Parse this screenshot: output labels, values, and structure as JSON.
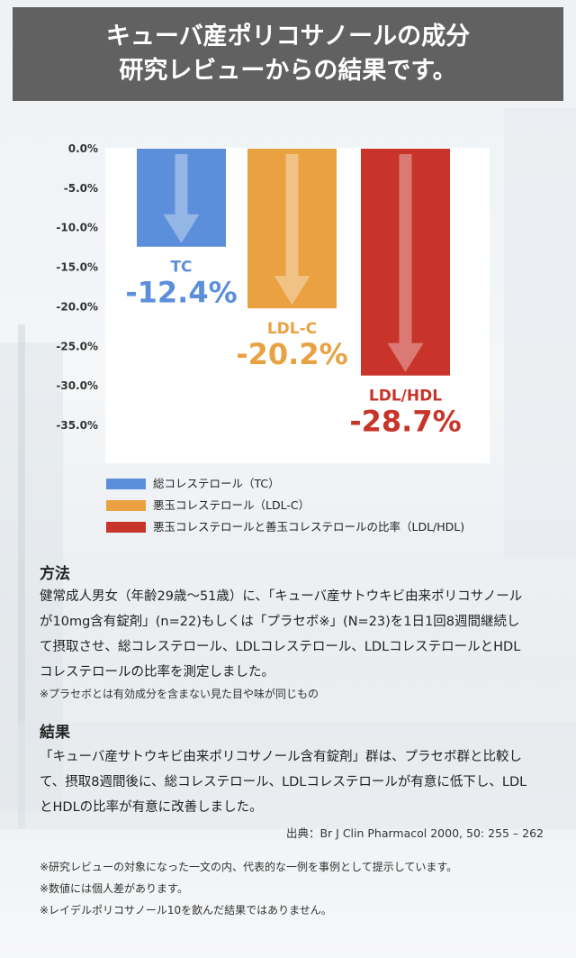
{
  "header": {
    "line1": "キューバ産ポリコサノールの成分",
    "line2": "研究レビューからの結果です。"
  },
  "chart_data": {
    "type": "bar",
    "categories": [
      "TC",
      "LDL-C",
      "LDL/HDL"
    ],
    "values": [
      -12.4,
      -20.2,
      -28.7
    ],
    "value_labels": [
      "-12.4%",
      "-20.2%",
      "-28.7%"
    ],
    "colors": [
      "#5b8fdb",
      "#e9a142",
      "#c8342a"
    ],
    "yticks": [
      0,
      -5,
      -10,
      -15,
      -20,
      -25,
      -30,
      -35
    ],
    "ytick_labels": [
      "0.0%",
      "-5.0%",
      "-10.0%",
      "-15.0%",
      "-20.0%",
      "-25.0%",
      "-30.0%",
      "-35.0%"
    ],
    "ylim": [
      -40,
      0
    ],
    "grid": false,
    "legend_position": "bottom",
    "legend": [
      "総コレステロール（TC）",
      "悪玉コレステロール（LDL-C）",
      "悪玉コレステロールと善玉コレステロールの比率（LDL/HDL)"
    ]
  },
  "method": {
    "title": "方法",
    "lines": [
      "健常成人男女（年齢29歳〜51歳）に、「キューバ産サトウキビ由来ポリコサノール",
      "が10mg含有錠剤」(n=22)もしくは「プラセボ※」(N=23)を1日1回8週間継続し",
      "て摂取させ、総コレステロール、LDLコレステロール、LDLコレステロールとHDL",
      "コレステロールの比率を測定しました。"
    ],
    "note": "※プラセボとは有効成分を含まない見た目や味が同じもの"
  },
  "result": {
    "title": "結果",
    "lines": [
      "「キューバ産サトウキビ由来ポリコサノール含有錠剤」群は、プラセボ群と比較し",
      "て、摂取8週間後に、総コレステロール、LDLコレステロールが有意に低下し、LDL",
      "とHDLの比率が有意に改善しました。"
    ],
    "source": "出典：Br J Clin Pharmacol 2000,  50: 255 – 262"
  },
  "footnotes": [
    "※研究レビューの対象になった一文の内、代表的な一例を事例として提示しています。",
    "※数値には個人差があります。",
    "※レイデルポリコサノール10を飲んだ結果ではありません。"
  ]
}
